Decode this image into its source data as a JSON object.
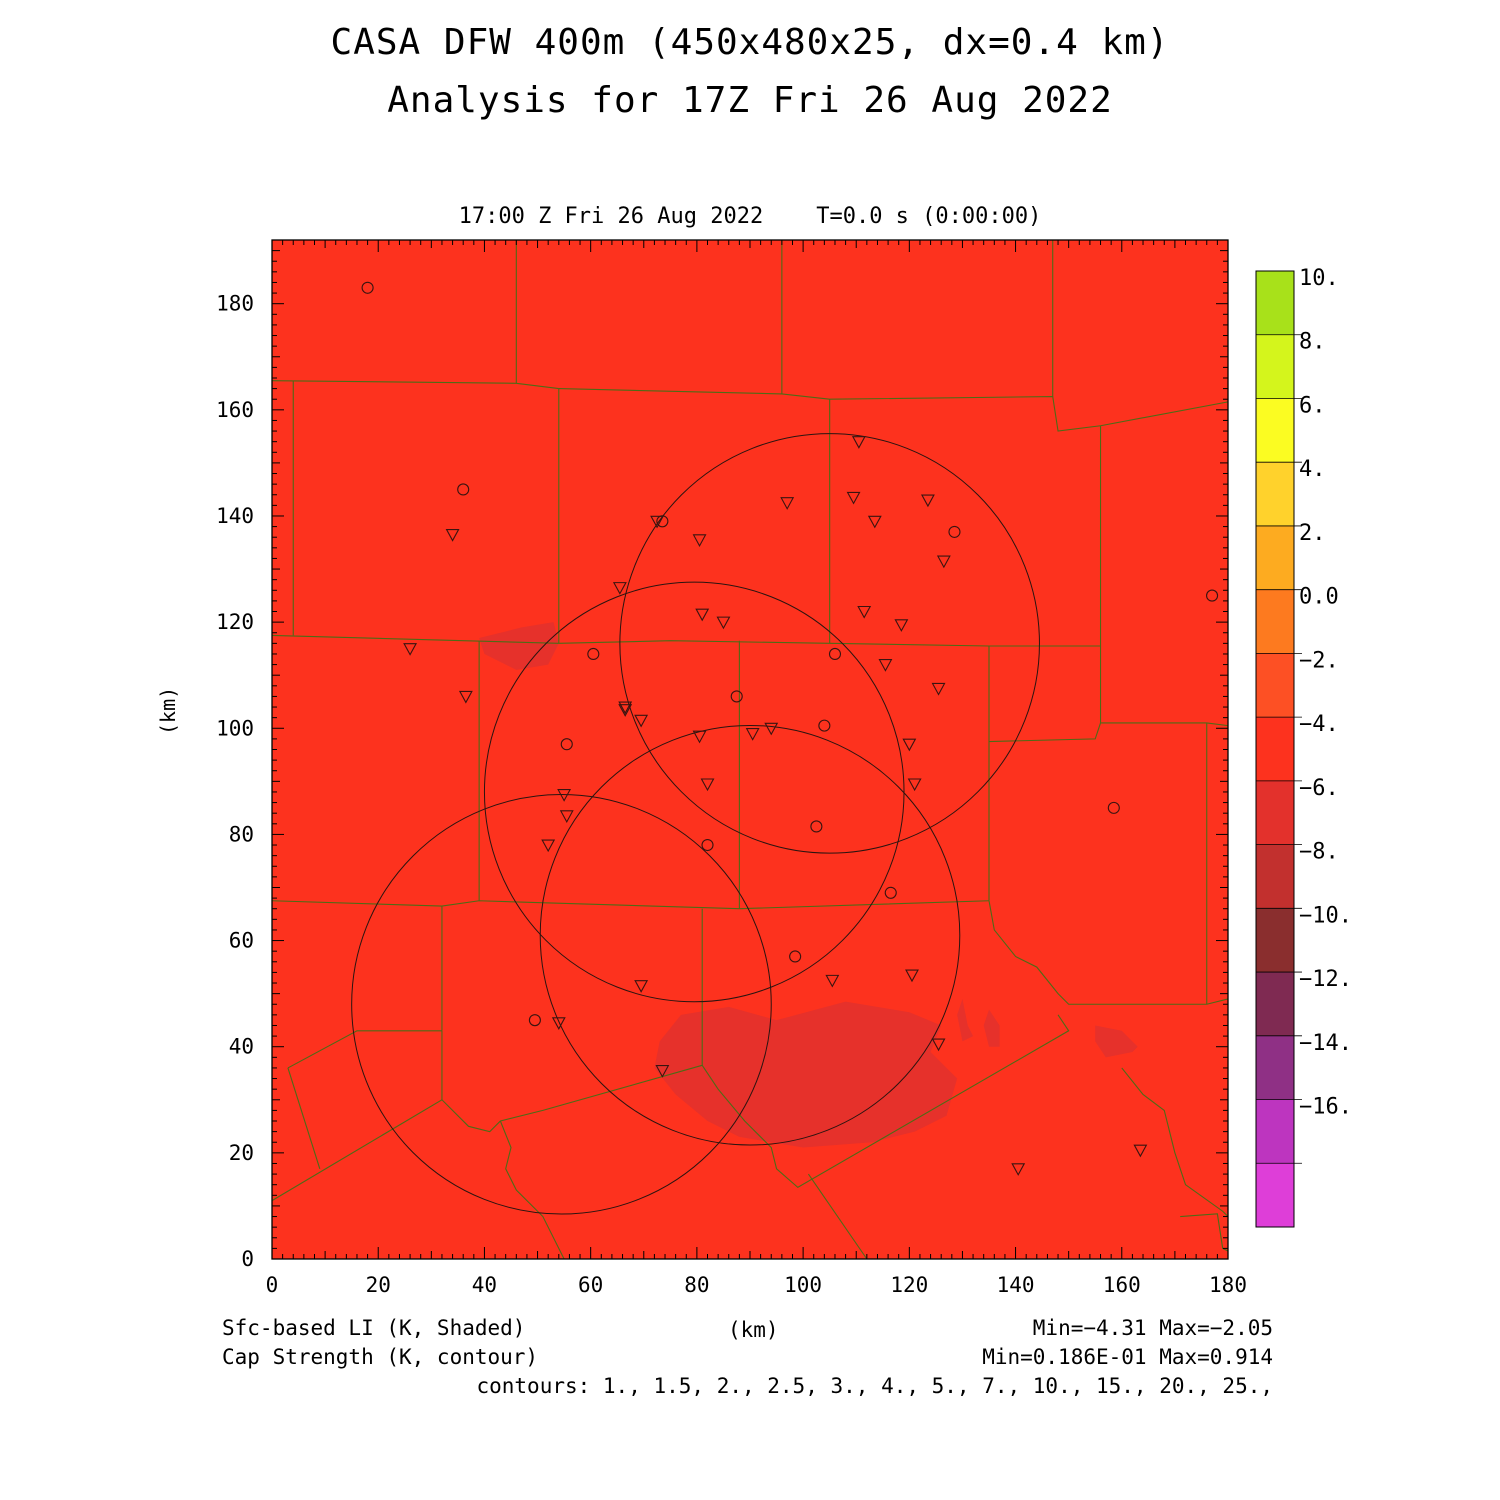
{
  "title": {
    "line1": "CASA DFW 400m (450x480x25, dx=0.4 km)",
    "line2": "Analysis for 17Z Fri 26 Aug 2022"
  },
  "subtitle": "17:00 Z Fri 26 Aug 2022    T=0.0 s (0:00:00)",
  "axes": {
    "x_label": "(km)",
    "y_label": "(km)",
    "x_range": [
      0,
      180
    ],
    "y_range": [
      0,
      192
    ],
    "x_ticks": [
      "0",
      "20",
      "40",
      "60",
      "80",
      "100",
      "120",
      "140",
      "160",
      "180"
    ],
    "y_ticks": [
      "0",
      "20",
      "40",
      "60",
      "80",
      "100",
      "120",
      "140",
      "160",
      "180"
    ]
  },
  "colorbar": {
    "labels": [
      "10.",
      "8.",
      "6.",
      "4.",
      "2.",
      "0.0",
      "−2.",
      "−4.",
      "−6.",
      "−8.",
      "−10.",
      "−12.",
      "−14.",
      "−16."
    ],
    "colors": [
      "#a8e11a",
      "#d4f51c",
      "#fbfc22",
      "#ffd22c",
      "#fdab20",
      "#fd7a1f",
      "#fd5024",
      "#fd321e",
      "#e3312c",
      "#c2302e",
      "#8a2e2e",
      "#7f2a52",
      "#8f3085",
      "#bd35bf",
      "#de3ed8"
    ]
  },
  "footer": {
    "left1": "Sfc-based LI (K, Shaded)",
    "left2": "Cap Strength (K, contour)",
    "center": "(km)",
    "right1": "Min=−4.31 Max=−2.05",
    "right2": "Min=0.186E-01 Max=0.914",
    "contours": "contours: 1., 1.5, 2., 2.5, 3., 4., 5., 7., 10., 15., 20., 25.,"
  },
  "map": {
    "background_color": "#fd321e",
    "shade_color": "#e3312c",
    "border_color": "#4e6b16",
    "radar_rings": [
      {
        "x": 105,
        "y": 116,
        "r": 39.5
      },
      {
        "x": 79.5,
        "y": 88,
        "r": 39.5
      },
      {
        "x": 90,
        "y": 61,
        "r": 39.5
      },
      {
        "x": 54.5,
        "y": 48,
        "r": 39.5
      }
    ],
    "station_circles": [
      [
        18,
        183
      ],
      [
        36,
        145
      ],
      [
        73.5,
        139
      ],
      [
        128.5,
        137
      ],
      [
        177,
        125
      ],
      [
        60.5,
        114
      ],
      [
        106,
        114
      ],
      [
        87.5,
        106
      ],
      [
        104,
        100.5
      ],
      [
        55.5,
        97
      ],
      [
        158.5,
        85
      ],
      [
        102.5,
        81.5
      ],
      [
        82,
        78
      ],
      [
        116.5,
        69
      ],
      [
        98.5,
        57
      ],
      [
        49.5,
        45
      ]
    ],
    "station_triangles": [
      [
        110.5,
        154
      ],
      [
        97,
        142.5
      ],
      [
        109.5,
        143.5
      ],
      [
        123.5,
        143
      ],
      [
        34,
        136.5
      ],
      [
        72.5,
        139
      ],
      [
        80.5,
        135.5
      ],
      [
        113.5,
        139
      ],
      [
        126.5,
        131.5
      ],
      [
        65.5,
        126.5
      ],
      [
        81,
        121.5
      ],
      [
        85,
        120
      ],
      [
        111.5,
        122
      ],
      [
        118.5,
        119.5
      ],
      [
        26,
        115
      ],
      [
        115.5,
        112
      ],
      [
        125.5,
        107.5
      ],
      [
        36.5,
        106
      ],
      [
        66.5,
        104
      ],
      [
        66.5,
        103.5
      ],
      [
        69.5,
        101.5
      ],
      [
        94,
        100
      ],
      [
        90.5,
        99
      ],
      [
        80.5,
        98.5
      ],
      [
        120,
        97
      ],
      [
        82,
        89.5
      ],
      [
        121,
        89.5
      ],
      [
        55,
        87.5
      ],
      [
        55.5,
        83.5
      ],
      [
        52,
        78
      ],
      [
        69.5,
        51.5
      ],
      [
        105.5,
        52.5
      ],
      [
        120.5,
        53.5
      ],
      [
        54,
        44.5
      ],
      [
        125.5,
        40.5
      ],
      [
        73.5,
        35.5
      ],
      [
        163.5,
        20.5
      ],
      [
        140.5,
        17
      ]
    ]
  }
}
